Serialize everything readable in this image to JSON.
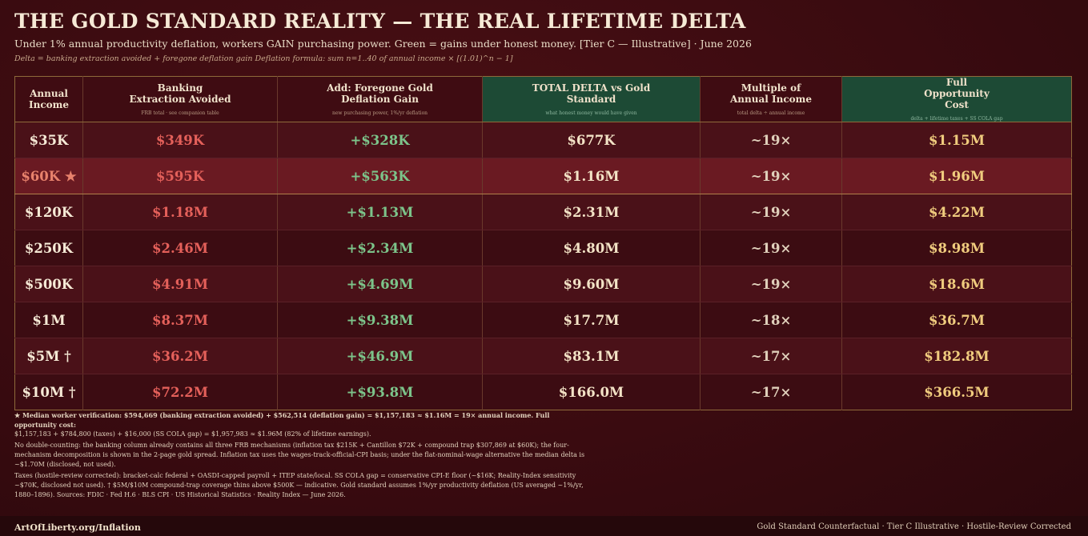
{
  "header": {
    "title": "THE GOLD STANDARD REALITY — THE REAL LIFETIME DELTA",
    "subtitle": "Under 1% annual productivity deflation, workers GAIN purchasing power. Green = gains under honest money. [Tier C — Illustrative] · June 2026",
    "formula": "Delta = banking extraction avoided + foregone deflation gain Deflation formula: sum n=1..40 of annual income × [(1.01)^n − 1]"
  },
  "table": {
    "columns": [
      {
        "label": "Annual Income",
        "note": ""
      },
      {
        "label": "Banking Extraction Avoided",
        "note": "FRB total · see companion table"
      },
      {
        "label": "Add: Foregone Gold Deflation Gain",
        "note": "new purchasing power, 1%/yr deflation"
      },
      {
        "label": "TOTAL DELTA vs Gold Standard",
        "note": "what honest money would have given"
      },
      {
        "label": "Multiple of Annual Income",
        "note": "total delta ÷ annual income"
      },
      {
        "label": "Full Opportunity Cost",
        "note": "delta + lifetime taxes + SS COLA gap"
      }
    ],
    "rows": [
      {
        "income": "$35K",
        "banking": "$349K",
        "gain": "+$328K",
        "total": "$677K",
        "multiple": "~19×",
        "full": "$1.15M"
      },
      {
        "income": "$60K ★",
        "banking": "$595K",
        "gain": "+$563K",
        "total": "$1.16M",
        "multiple": "~19×",
        "full": "$1.96M"
      },
      {
        "income": "$120K",
        "banking": "$1.18M",
        "gain": "+$1.13M",
        "total": "$2.31M",
        "multiple": "~19×",
        "full": "$4.22M"
      },
      {
        "income": "$250K",
        "banking": "$2.46M",
        "gain": "+$2.34M",
        "total": "$4.80M",
        "multiple": "~19×",
        "full": "$8.98M"
      },
      {
        "income": "$500K",
        "banking": "$4.91M",
        "gain": "+$4.69M",
        "total": "$9.60M",
        "multiple": "~19×",
        "full": "$18.6M"
      },
      {
        "income": "$1M",
        "banking": "$8.37M",
        "gain": "+$9.38M",
        "total": "$17.7M",
        "multiple": "~18×",
        "full": "$36.7M"
      },
      {
        "income": "$5M †",
        "banking": "$36.2M",
        "gain": "+$46.9M",
        "total": "$83.1M",
        "multiple": "~17×",
        "full": "$182.8M"
      },
      {
        "income": "$10M †",
        "banking": "$72.2M",
        "gain": "+$93.8M",
        "total": "$166.0M",
        "multiple": "~17×",
        "full": "$366.5M"
      }
    ]
  },
  "footnotes": {
    "verification": "★ Median worker verification: $594,669 (banking extraction avoided) + $562,514 (deflation gain) = $1,157,183 ≈ $1.16M = 19× annual income. Full opportunity cost:",
    "verification_cont": "$1,157,183 + $784,800 (taxes) + $16,000 (SS COLA gap) = $1,957,983 ≈ $1.96M (82% of lifetime earnings).",
    "double_counting": "No double-counting: the banking column already contains all three FRB mechanisms (inflation tax $215K + Cantillon $72K + compound trap $307,869 at $60K); the four-mechanism decomposition is shown in the 2-page gold spread. Inflation tax uses the wages-track-official-CPI basis; under the flat-nominal-wage alternative the median delta is ~$1.70M (disclosed, not used).",
    "taxes": "Taxes (hostile-review corrected): bracket-calc federal + OASDI-capped payroll + ITEP state/local. SS COLA gap = conservative CPI-E floor (~$16K; Reality-Index sensitivity ~$70K, disclosed not used). † $5M/$10M compound-trap coverage thins above $500K — indicative. Gold standard assumes 1%/yr productivity deflation (US averaged ~1%/yr, 1880–1896). Sources: FDIC · Fed H.6 · BLS CPI · US Historical Statistics · Reality Index — June 2026."
  },
  "footer": {
    "left": "ArtOfLiberty.org/Inflation",
    "right": "Gold Standard Counterfactual · Tier C Illustrative · Hostile-Review Corrected"
  },
  "colors": {
    "background": "#3a0b10",
    "header_green": "#1d4a35",
    "banking_red": "#e4605a",
    "gain_green": "#7cc48a",
    "full_gold": "#f0cc7e",
    "highlight_row": "#6a1a22"
  }
}
